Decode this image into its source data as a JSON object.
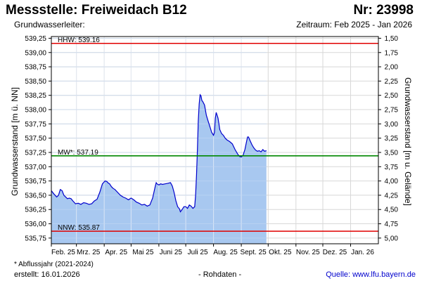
{
  "header": {
    "title": "Messstelle: Freiweidach B12",
    "number": "Nr: 23998",
    "subtitle": "Grundwasserleiter:",
    "period": "Zeitraum: Feb 2025 - Jan 2026"
  },
  "footer": {
    "footnote": "* Abflussjahr (2021-2024)",
    "created": "erstellt:  16.01.2026",
    "raw_data": "- Rohdaten -",
    "source": "Quelle: www.lfu.bayern.de"
  },
  "colors": {
    "line": "#0000cc",
    "fill": "#a8c8f0",
    "grid": "#d8d8d8",
    "hhw_line": "#e00000",
    "nnw_line": "#e00000",
    "mw_line": "#008800"
  },
  "chart_data": {
    "type": "area",
    "title": "",
    "xlabel": "",
    "ylabel": "Grundwasserstand [m ü. NN]",
    "ylabel_right": "Grundwasserstand [m u. Gelände]",
    "ylim": [
      535.65,
      539.28
    ],
    "y_ticks": [
      "539,25",
      "539,00",
      "538,75",
      "538,50",
      "538,25",
      "538,00",
      "537,75",
      "537,50",
      "537,25",
      "537,00",
      "536,75",
      "536,50",
      "536,25",
      "536,00",
      "535,75"
    ],
    "y_tick_values": [
      539.25,
      539.0,
      538.75,
      538.5,
      538.25,
      538.0,
      537.75,
      537.5,
      537.25,
      537.0,
      536.75,
      536.5,
      536.25,
      536.0,
      535.75
    ],
    "y2_ticks": [
      "1,50",
      "1,75",
      "2,00",
      "2,25",
      "2,50",
      "2,75",
      "3,00",
      "3,25",
      "3,50",
      "3,75",
      "4,00",
      "4,25",
      "4,50",
      "4,75",
      "5,00"
    ],
    "y2_tick_values": [
      1.5,
      1.75,
      2.0,
      2.25,
      2.5,
      2.75,
      3.0,
      3.25,
      3.5,
      3.75,
      4.0,
      4.25,
      4.5,
      4.75,
      5.0
    ],
    "y2_offset": 540.75,
    "x_range_days": [
      0,
      365
    ],
    "x_ticks": [
      "Feb. 25",
      "Mrz. 25",
      "Apr. 25",
      "Mai 25",
      "Juni 25",
      "Juli 25",
      "Aug. 25",
      "Sept. 25",
      "Okt. 25",
      "Nov. 25",
      "Dez. 25",
      "Jan. 26"
    ],
    "x_tick_days": [
      0,
      28,
      59,
      89,
      120,
      150,
      181,
      212,
      242,
      273,
      303,
      334
    ],
    "grid": true,
    "reference_lines": [
      {
        "key": "hhw",
        "label": "HHW: 539.16",
        "value": 539.16
      },
      {
        "key": "mw",
        "label": "MW*: 537.19",
        "value": 537.19
      },
      {
        "key": "nnw",
        "label": "NNW: 535.87",
        "value": 535.87
      }
    ],
    "series": [
      {
        "x": [
          0,
          3,
          6,
          8,
          10,
          12,
          14,
          16,
          18,
          20,
          22,
          24,
          27,
          30,
          33,
          36,
          39,
          42,
          45,
          48,
          51,
          54,
          57,
          60,
          62,
          63,
          65,
          67,
          69,
          71,
          74,
          77,
          80,
          83,
          86,
          89,
          92,
          95,
          98,
          101,
          104,
          107,
          110,
          113,
          116,
          117,
          118,
          120,
          122,
          124,
          127,
          130,
          133,
          135,
          137,
          139,
          141,
          143,
          144,
          146,
          148,
          150,
          152,
          153,
          154,
          156,
          158,
          160,
          161,
          162,
          163,
          164,
          165,
          166,
          167,
          168,
          169,
          171,
          173,
          175,
          177,
          179,
          181,
          182,
          183,
          184,
          186,
          188,
          190,
          192,
          194,
          196,
          199,
          202,
          205,
          208,
          210,
          212,
          214,
          216,
          218,
          219,
          220,
          222,
          224,
          226,
          228,
          230,
          232,
          234,
          236,
          238,
          240
        ],
        "y": [
          536.58,
          536.52,
          536.47,
          536.5,
          536.6,
          536.58,
          536.5,
          536.47,
          536.44,
          536.45,
          536.44,
          536.4,
          536.35,
          536.36,
          536.34,
          536.37,
          536.36,
          536.34,
          536.35,
          536.4,
          536.43,
          536.55,
          536.7,
          536.75,
          536.74,
          536.72,
          536.7,
          536.65,
          536.62,
          536.6,
          536.55,
          536.5,
          536.47,
          536.45,
          536.42,
          536.45,
          536.42,
          536.38,
          536.36,
          536.33,
          536.34,
          536.31,
          536.33,
          536.45,
          536.66,
          536.72,
          536.7,
          536.68,
          536.7,
          536.69,
          536.7,
          536.71,
          536.72,
          536.66,
          536.55,
          536.4,
          536.3,
          536.26,
          536.21,
          536.25,
          536.3,
          536.3,
          536.27,
          536.3,
          536.33,
          536.31,
          536.27,
          536.3,
          536.5,
          536.85,
          537.3,
          537.8,
          538.1,
          538.26,
          538.24,
          538.16,
          538.14,
          538.08,
          537.9,
          537.8,
          537.7,
          537.6,
          537.55,
          537.6,
          537.85,
          537.95,
          537.85,
          537.65,
          537.58,
          537.55,
          537.5,
          537.47,
          537.44,
          537.4,
          537.3,
          537.22,
          537.18,
          537.17,
          537.2,
          537.3,
          537.45,
          537.52,
          537.52,
          537.45,
          537.38,
          537.33,
          537.29,
          537.27,
          537.28,
          537.26,
          537.3,
          537.27,
          537.28
        ]
      }
    ]
  }
}
